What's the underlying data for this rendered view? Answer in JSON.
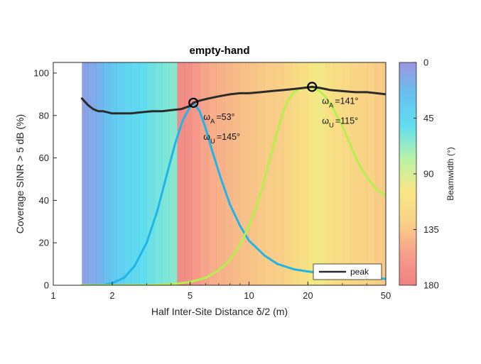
{
  "chart_data": {
    "type": "line",
    "title": "empty-hand",
    "xlabel": "Half Inter-Site Distance δ/2 (m)",
    "ylabel": "Coverage SINR > 5 dB (%)",
    "xscale": "log",
    "xlim": [
      1,
      50
    ],
    "ylim": [
      0,
      105
    ],
    "xticks": [
      1,
      2,
      5,
      10,
      20,
      50
    ],
    "yticks": [
      0,
      20,
      40,
      60,
      80,
      100
    ],
    "grid": false,
    "legend": {
      "position": "bottom-right",
      "entries": [
        "peak"
      ]
    },
    "colorbar": {
      "label": "Beamwidth (°)",
      "range": [
        0,
        180
      ],
      "ticks": [
        0,
        45,
        90,
        135,
        180
      ],
      "colormap": [
        "#8b82dd",
        "#4cb6ee",
        "#45d8ee",
        "#aaf09a",
        "#f6e46f",
        "#f8cc72",
        "#f58e77",
        "#ec6a6d"
      ]
    },
    "background_beamwidth": {
      "x": [
        1.4,
        1.5,
        1.65,
        1.8,
        1.95,
        2.1,
        2.3,
        2.5,
        2.75,
        3.0,
        3.3,
        3.6,
        3.9,
        4.3,
        4.7,
        5.1,
        5.6,
        6.2,
        6.8,
        7.5,
        8.2,
        9.0,
        10.0,
        11.0,
        12.0,
        13.5,
        15.0,
        16.5,
        18.0,
        20.0,
        22.0,
        24.5,
        27.0,
        30.0,
        33.0,
        36.5,
        40.0,
        44.0,
        48.0,
        50.0
      ],
      "beamwidth": [
        8,
        12,
        18,
        25,
        32,
        38,
        44,
        47,
        51,
        55,
        58,
        60,
        63,
        170,
        168,
        160,
        152,
        148,
        145,
        143,
        140,
        138,
        136,
        134,
        132,
        131,
        128,
        122,
        115,
        105,
        100,
        112,
        118,
        122,
        125,
        128,
        130,
        132,
        133,
        133
      ]
    },
    "series": [
      {
        "name": "peak",
        "color": "#2b2b2b",
        "x": [
          1.4,
          1.5,
          1.6,
          1.7,
          1.8,
          2.0,
          2.2,
          2.5,
          2.8,
          3.2,
          3.6,
          4.0,
          4.5,
          5.0,
          5.2,
          5.6,
          6.2,
          7.0,
          8.0,
          9.0,
          10.0,
          11.5,
          13.0,
          15.0,
          17.0,
          19.0,
          21.0,
          23.0,
          26.0,
          30.0,
          35.0,
          40.0,
          45.0,
          50.0
        ],
        "y": [
          88,
          85,
          83,
          82,
          82,
          81,
          81,
          81,
          81.5,
          82,
          82,
          82.5,
          83,
          84.5,
          86,
          87,
          88,
          89,
          90,
          90.5,
          90.5,
          91,
          91.5,
          92,
          92.5,
          93,
          93.5,
          93,
          92,
          91.5,
          91,
          91,
          90.5,
          90
        ]
      },
      {
        "color": "#1eb5e9",
        "x": [
          1.4,
          1.8,
          2.0,
          2.3,
          2.6,
          3.0,
          3.4,
          3.8,
          4.2,
          4.6,
          5.0,
          5.2,
          5.6,
          6.0,
          6.5,
          7.2,
          8.0,
          9.0,
          10.0,
          12.0,
          14.0,
          17.0,
          20.0,
          25.0,
          30.0,
          40.0,
          50.0
        ],
        "y": [
          0,
          0.2,
          1,
          3.5,
          9,
          20,
          35,
          52,
          67,
          78,
          84,
          86,
          82,
          74,
          63,
          50,
          38,
          28,
          21,
          14,
          10,
          7.5,
          6.5,
          5.5,
          4.5,
          3.5,
          3
        ]
      },
      {
        "color": "#b6ef4e",
        "x": [
          1.4,
          3.0,
          4.0,
          5.0,
          6.0,
          7.0,
          8.0,
          9.0,
          10.0,
          11.0,
          12.0,
          13.0,
          14.0,
          15.0,
          16.0,
          17.0,
          18.0,
          19.0,
          20.0,
          21.0,
          22.0,
          23.0,
          25.0,
          27.0,
          30.0,
          33.0,
          36.0,
          40.0,
          45.0,
          50.0
        ],
        "y": [
          0,
          0,
          0.5,
          1.5,
          3.5,
          7,
          12,
          19,
          28,
          38,
          50,
          62,
          73,
          82,
          88,
          91,
          92.5,
          93,
          93,
          93,
          92.5,
          91.5,
          88,
          83,
          75,
          66,
          58,
          51,
          45,
          42
        ]
      }
    ],
    "annotations": [
      {
        "x": 5.2,
        "y": 86,
        "omega_A": "=53°",
        "omega_U": "=145°"
      },
      {
        "x": 21.0,
        "y": 93.5,
        "omega_A": "=141°",
        "omega_U": "=115°"
      }
    ],
    "annotation_symbols": {
      "omega": "ω",
      "sub_A": "A",
      "sub_U": "U"
    }
  }
}
